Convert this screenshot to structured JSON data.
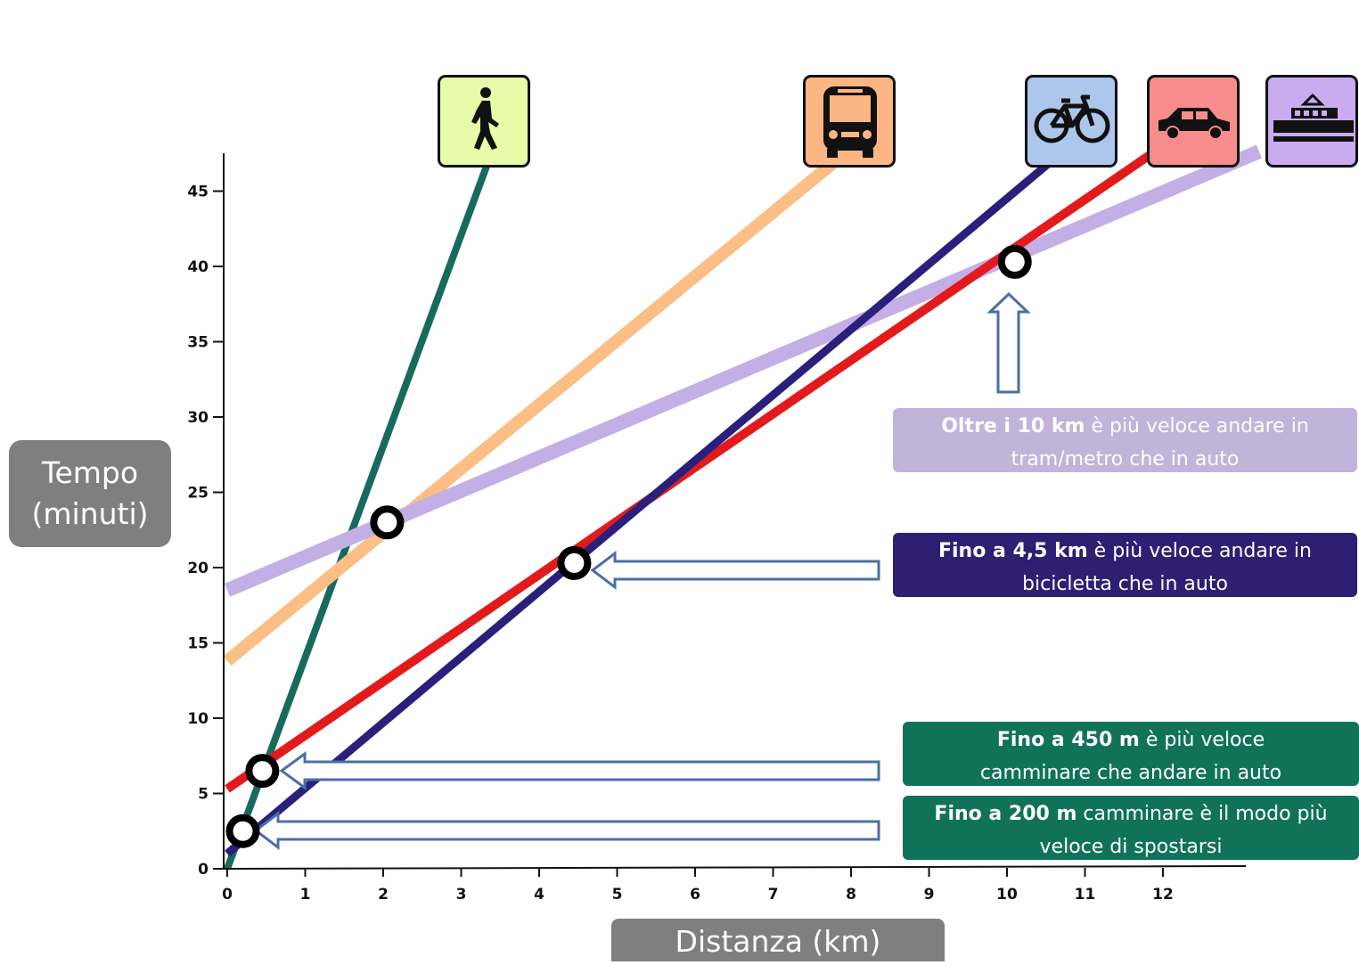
{
  "chart_data": {
    "type": "line",
    "xlabel": "Distanza (km)",
    "ylabel_lines": [
      "Tempo",
      "(minuti)"
    ],
    "xlim": [
      0,
      13
    ],
    "ylim": [
      0,
      46
    ],
    "x_ticks": [
      {
        "value": 0,
        "label": "0"
      },
      {
        "value": 1,
        "label": "1"
      },
      {
        "value": 2,
        "label": "2"
      },
      {
        "value": 3,
        "label": "3"
      },
      {
        "value": 4,
        "label": "4"
      },
      {
        "value": 5,
        "label": "5"
      },
      {
        "value": 6,
        "label": "6"
      },
      {
        "value": 7,
        "label": "7"
      },
      {
        "value": 8,
        "label": "8"
      },
      {
        "value": 9,
        "label": "9"
      },
      {
        "value": 10,
        "label": "10"
      },
      {
        "value": 11,
        "label": "11"
      },
      {
        "value": 12,
        "label": "12"
      }
    ],
    "y_ticks": [
      {
        "value": 0,
        "label": "0"
      },
      {
        "value": 5,
        "label": "5"
      },
      {
        "value": 10,
        "label": "10"
      },
      {
        "value": 15,
        "label": "15"
      },
      {
        "value": 20,
        "label": "20"
      },
      {
        "value": 25,
        "label": "25"
      },
      {
        "value": 30,
        "label": "30"
      },
      {
        "value": 35,
        "label": "35"
      },
      {
        "value": 40,
        "label": "40"
      },
      {
        "value": 45,
        "label": "45"
      }
    ],
    "series": [
      {
        "mode": "walk",
        "color": "#176b5c",
        "icon": "pedestrian-icon",
        "points": [
          [
            0,
            0
          ],
          [
            3.35,
            47
          ]
        ]
      },
      {
        "mode": "bus",
        "color": "#fbbf85",
        "icon": "bus-icon",
        "points": [
          [
            0,
            13.8
          ],
          [
            7.8,
            47
          ]
        ]
      },
      {
        "mode": "bike",
        "color": "#2b1f7c",
        "icon": "bicycle-icon",
        "points": [
          [
            0,
            1
          ],
          [
            10.8,
            48
          ]
        ]
      },
      {
        "mode": "car",
        "color": "#e31a1c",
        "icon": "car-icon",
        "points": [
          [
            0,
            5.3
          ],
          [
            12.0,
            48
          ]
        ]
      },
      {
        "mode": "tram",
        "color": "#c3aee6",
        "icon": "tram-icon",
        "points": [
          [
            0,
            18.5
          ],
          [
            13.4,
            48
          ]
        ]
      }
    ],
    "markers": [
      {
        "x": 0.2,
        "y": 2.5
      },
      {
        "x": 0.45,
        "y": 6.5
      },
      {
        "x": 2.05,
        "y": 23
      },
      {
        "x": 4.45,
        "y": 20.3
      },
      {
        "x": 10.1,
        "y": 40.3
      }
    ],
    "grid": false
  },
  "callouts": {
    "tram": {
      "bold": "Oltre i 10 km",
      "rest": " è più veloce  andare in",
      "line2": "tram/metro che in auto",
      "color": "#c2b3da"
    },
    "bike": {
      "bold": "Fino a 4,5 km",
      "rest": " è più veloce andare in",
      "line2": "bicicletta che in auto",
      "color": "#2e1f73"
    },
    "walk450": {
      "bold": "Fino a 450 m",
      "rest": " è più veloce",
      "line2": "camminare che andare in auto",
      "color": "#107359"
    },
    "walk200": {
      "bold": "Fino a 200 m",
      "rest": " camminare è il modo più",
      "line2": "veloce di spostarsi",
      "color": "#107359"
    }
  },
  "icons": {
    "walk": {
      "name": "pedestrian-icon",
      "bg": "#e6fca8"
    },
    "bus": {
      "name": "bus-icon",
      "bg": "#fbb684"
    },
    "bike": {
      "name": "bicycle-icon",
      "bg": "#adc6ec"
    },
    "car": {
      "name": "car-icon",
      "bg": "#f78c8c"
    },
    "tram": {
      "name": "tram-icon",
      "bg": "#c9abef"
    }
  }
}
